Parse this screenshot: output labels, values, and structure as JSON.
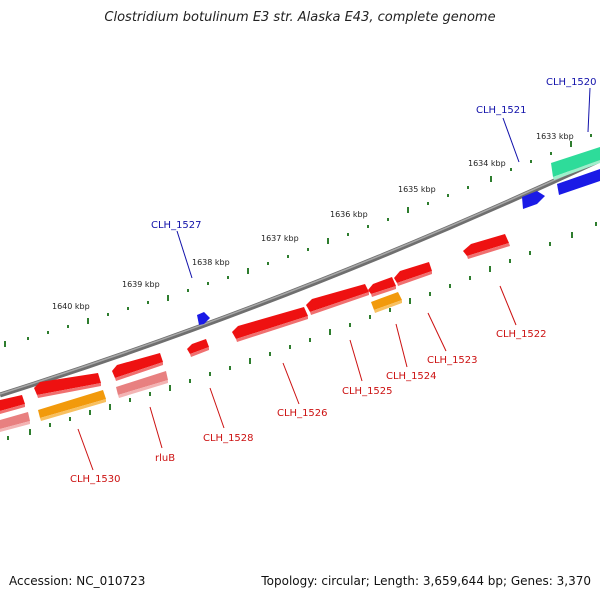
{
  "title": "Clostridium botulinum E3 str. Alaska E43, complete genome",
  "footer": {
    "accession": "Accession: NC_010723",
    "summary": "Topology: circular; Length: 3,659,644 bp; Genes: 3,370"
  },
  "colors": {
    "backbone": "#808080",
    "tick": "#2e7d2e",
    "gene_red": "#ee1111",
    "gene_pink": "#e88080",
    "gene_orange": "#f29a0c",
    "gene_blue": "#1a1ae6",
    "gene_teal": "#2edc9a",
    "label_blue": "#1111aa",
    "label_red": "#cc1111"
  },
  "scale_labels": [
    "1633 kbp",
    "1634 kbp",
    "1635 kbp",
    "1636 kbp",
    "1637 kbp",
    "1638 kbp",
    "1639 kbp",
    "1640 kbp"
  ],
  "gene_labels": [
    {
      "text": "CLH_1520",
      "color": "blue"
    },
    {
      "text": "CLH_1521",
      "color": "blue"
    },
    {
      "text": "CLH_1527",
      "color": "blue"
    },
    {
      "text": "CLH_1522",
      "color": "red"
    },
    {
      "text": "CLH_1523",
      "color": "red"
    },
    {
      "text": "CLH_1524",
      "color": "red"
    },
    {
      "text": "CLH_1525",
      "color": "red"
    },
    {
      "text": "CLH_1526",
      "color": "red"
    },
    {
      "text": "CLH_1528",
      "color": "red"
    },
    {
      "text": "rluB",
      "color": "red"
    },
    {
      "text": "CLH_1530",
      "color": "red"
    }
  ]
}
